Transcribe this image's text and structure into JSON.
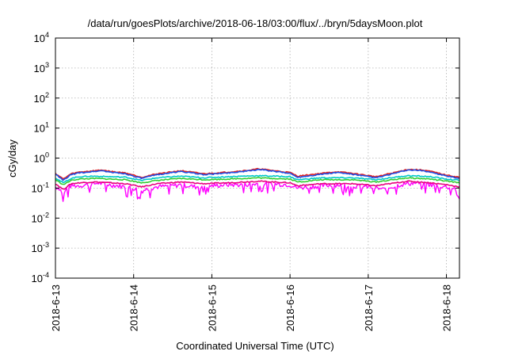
{
  "chart_data": {
    "type": "line",
    "title": "/data/run/goesPlots/archive/2018-06-18/03:00/flux/../bryn/5daysMoon.plot",
    "xlabel": "Coordinated Universal Time (UTC)",
    "ylabel": "cGy/day",
    "xlim": [
      "2018-06-13",
      "2018-06-18 04:00"
    ],
    "ylim": [
      0.0001,
      10000
    ],
    "yscale": "log",
    "grid": true,
    "x_ticks": [
      "2018-6-13",
      "2018-6-14",
      "2018-6-15",
      "2018-6-16",
      "2018-6-17",
      "2018-6-18"
    ],
    "y_ticks": [
      {
        "base": "10",
        "exp": "-4"
      },
      {
        "base": "10",
        "exp": "-3"
      },
      {
        "base": "10",
        "exp": "-2"
      },
      {
        "base": "10",
        "exp": "-1"
      },
      {
        "base": "10",
        "exp": "0"
      },
      {
        "base": "10",
        "exp": "1"
      },
      {
        "base": "10",
        "exp": "2"
      },
      {
        "base": "10",
        "exp": "3"
      },
      {
        "base": "10",
        "exp": "4"
      }
    ],
    "series": [
      {
        "color": "#ff00ff",
        "shape": "[[0,0.11],[0.05,0.1],[0.1,0.06],[0.15,0.1],[0.2,0.12],[0.3,0.12],[0.4,0.13],[0.5,0.14],[0.55,0.15],[0.6,0.14],[0.7,0.13],[0.8,0.12],[0.9,0.11],[1.0,0.1],[1.1,0.08],[1.2,0.1],[1.3,0.11],[1.5,0.12],[1.6,0.13],[1.7,0.12],[1.8,0.11],[1.9,0.12],[2.0,0.12],[2.2,0.13],[2.4,0.13],[2.6,0.14],[2.8,0.14],[3.0,0.13],[3.1,0.1],[3.2,0.11],[3.4,0.12],[3.6,0.13],[3.8,0.12],[4.0,0.11],[4.1,0.1],[4.2,0.09],[4.4,0.13],[4.5,0.14],[4.6,0.15],[4.7,0.14],[4.8,0.13],[4.9,0.12],[5.0,0.11],[5.1,0.1],[5.17,0.08]]",
        "values": []
      },
      {
        "color": "#e8007f",
        "shape": "[[0,0.14],[0.1,0.09],[0.2,0.14],[0.3,0.15],[0.5,0.16],[0.7,0.15],[0.9,0.14],[1.1,0.11],[1.3,0.14],[1.6,0.16],[1.9,0.14],[2.2,0.15],[2.6,0.17],[3.0,0.15],[3.1,0.12],[3.4,0.14],[3.8,0.14],[4.1,0.12],[4.5,0.17],[4.8,0.15],[5.0,0.13],[5.17,0.11]]",
        "values": []
      },
      {
        "color": "#32cd32",
        "shape": "[[0,0.19],[0.1,0.13],[0.2,0.18],[0.3,0.2],[0.5,0.21],[0.7,0.2],[0.9,0.19],[1.1,0.15],[1.3,0.18],[1.6,0.21],[1.9,0.19],[2.2,0.2],[2.6,0.22],[3.0,0.2],[3.1,0.16],[3.4,0.19],[3.8,0.19],[4.1,0.16],[4.5,0.22],[4.8,0.2],[5.0,0.17],[5.17,0.15]]",
        "values": []
      },
      {
        "color": "#00c8c8",
        "shape": "[[0,0.22],[0.1,0.15],[0.2,0.21],[0.3,0.24],[0.5,0.25],[0.7,0.24],[0.9,0.23],[1.1,0.18],[1.3,0.22],[1.6,0.25],[1.9,0.22],[2.2,0.24],[2.6,0.26],[3.0,0.24],[3.1,0.19],[3.4,0.22],[3.8,0.22],[4.1,0.19],[4.5,0.26],[4.8,0.24],[5.0,0.2],[5.17,0.18]]",
        "values": []
      },
      {
        "color": "#e02020",
        "shape": "[[0,0.31],[0.1,0.2],[0.2,0.3],[0.3,0.34],[0.5,0.38],[0.6,0.4],[0.7,0.36],[0.9,0.32],[1.1,0.23],[1.3,0.3],[1.5,0.35],[1.6,0.38],[1.9,0.3],[2.2,0.34],[2.5,0.4],[2.6,0.44],[2.8,0.38],[3.0,0.33],[3.1,0.25],[3.4,0.31],[3.6,0.35],[3.8,0.31],[4.1,0.24],[4.4,0.36],[4.5,0.42],[4.7,0.4],[4.8,0.36],[5.0,0.27],[5.17,0.23]]",
        "values": []
      },
      {
        "color": "#1e50e6",
        "shape": "[[0,0.29],[0.1,0.18],[0.2,0.28],[0.3,0.32],[0.5,0.36],[0.6,0.38],[0.7,0.34],[0.9,0.3],[1.1,0.21],[1.3,0.28],[1.5,0.33],[1.6,0.36],[1.9,0.28],[2.2,0.32],[2.5,0.38],[2.6,0.42],[2.8,0.36],[3.0,0.31],[3.1,0.23],[3.4,0.29],[3.6,0.33],[3.8,0.29],[4.1,0.22],[4.4,0.34],[4.5,0.4],[4.7,0.38],[4.8,0.34],[5.0,0.25],[5.17,0.21]]",
        "values": []
      }
    ]
  }
}
